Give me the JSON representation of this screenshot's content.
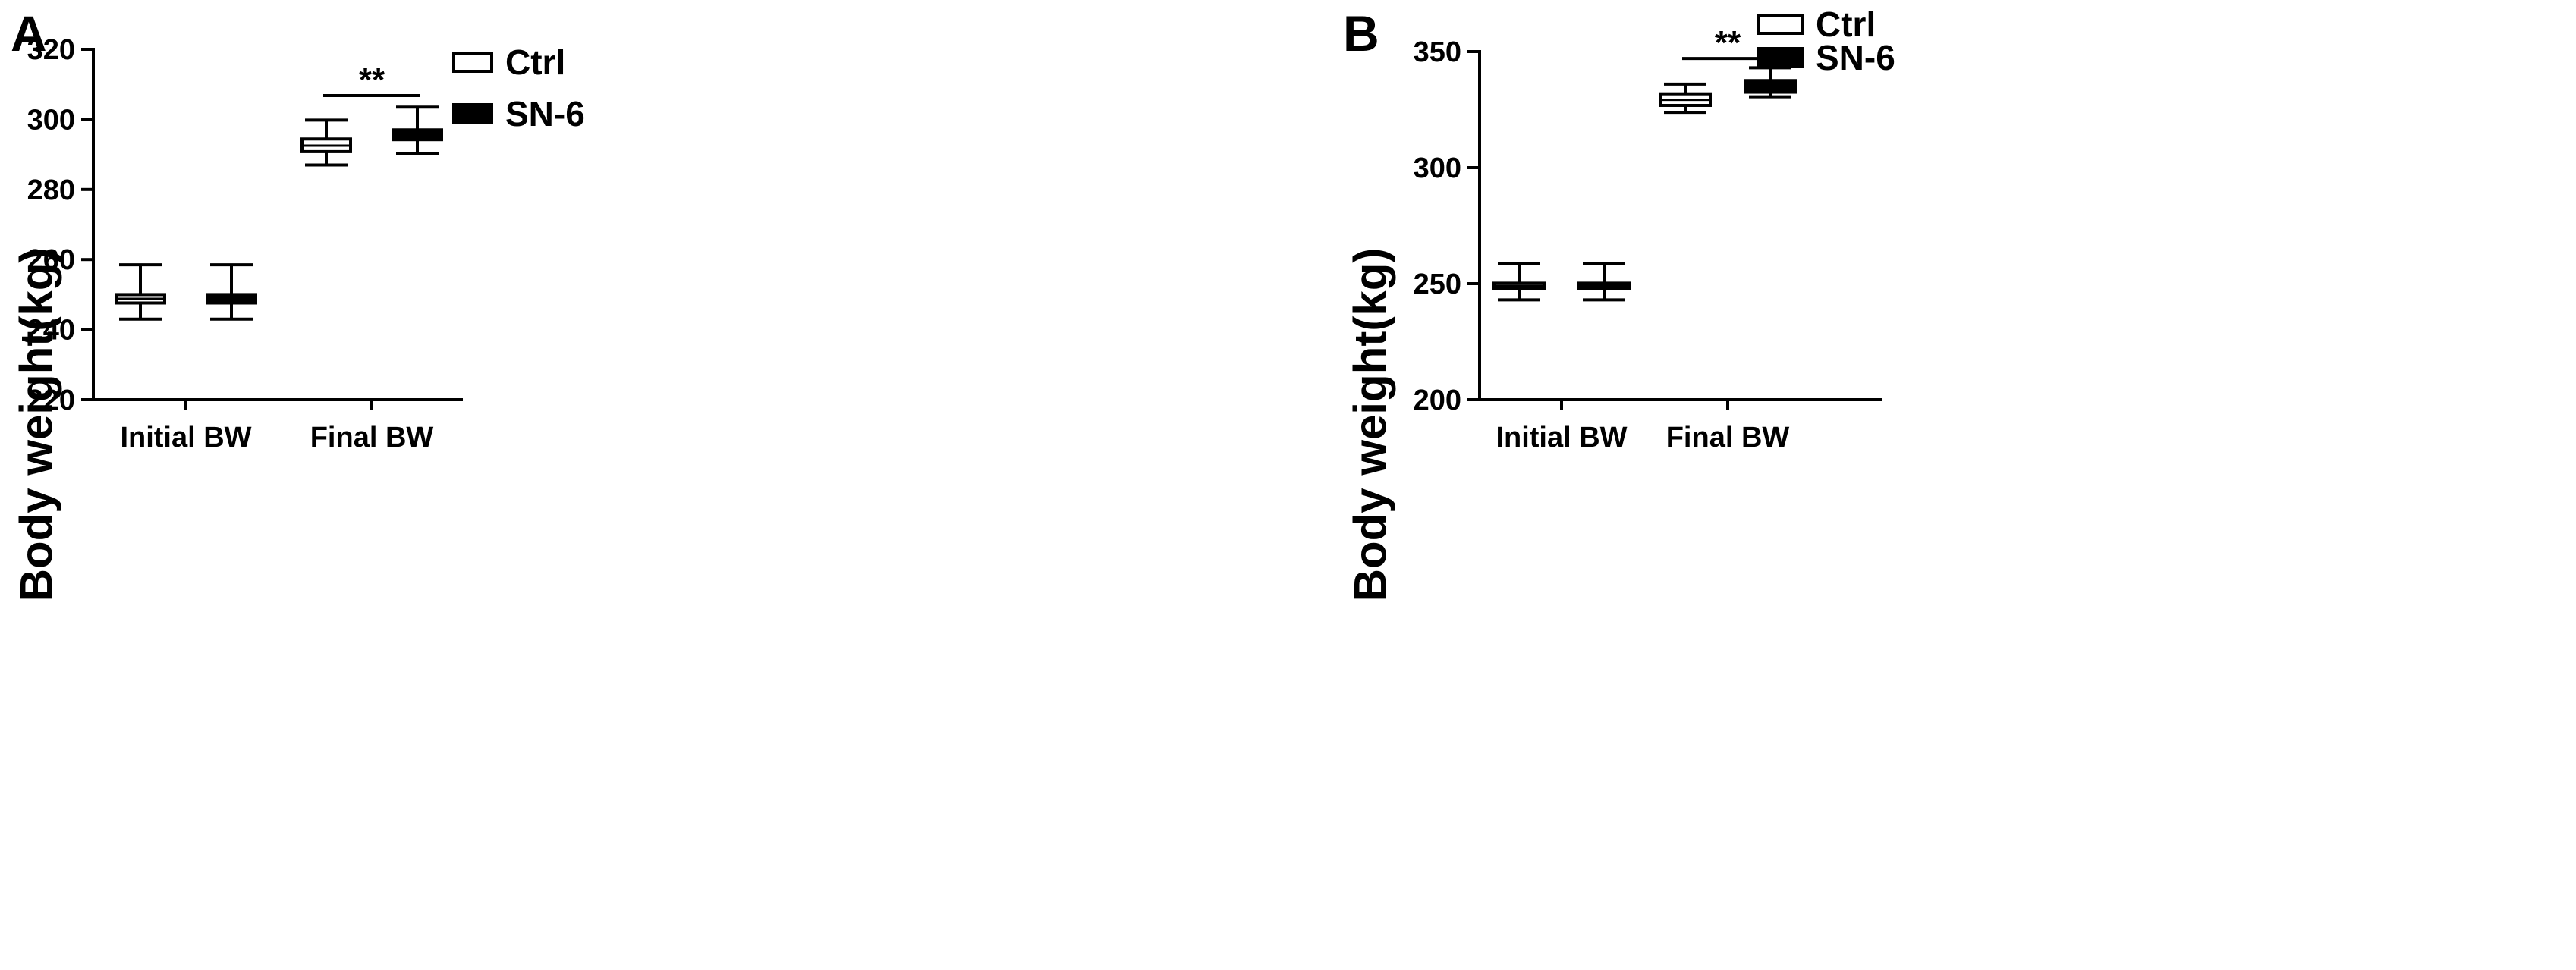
{
  "chart_data": [
    {
      "panel": "A",
      "type": "boxplot",
      "ylabel": "Body weight(kg)",
      "ylim": [
        220,
        320
      ],
      "yticks": [
        220,
        240,
        260,
        280,
        300,
        320
      ],
      "categories": [
        "Initial BW",
        "Final BW"
      ],
      "legend": {
        "position": "top-right",
        "entries": [
          "Ctrl",
          "SN-6"
        ]
      },
      "series": [
        {
          "name": "Ctrl",
          "fill": "#ffffff",
          "boxes": [
            {
              "min": 243,
              "q1": 247.6,
              "median": 248.8,
              "q3": 250,
              "max": 258.5
            },
            {
              "min": 287,
              "q1": 290.8,
              "median": 292.5,
              "q3": 294.4,
              "max": 299.8
            }
          ]
        },
        {
          "name": "SN-6",
          "fill": "#000000",
          "boxes": [
            {
              "min": 243,
              "q1": 247.6,
              "median": 248.8,
              "q3": 250,
              "max": 258.5
            },
            {
              "min": 290.2,
              "q1": 294.2,
              "median": 295.5,
              "q3": 297,
              "max": 303.5
            }
          ]
        }
      ],
      "annotations": [
        {
          "text": "**",
          "category": "Final BW",
          "y": 306.8
        }
      ]
    },
    {
      "panel": "B",
      "type": "boxplot",
      "ylabel": "Body weight(kg)",
      "ylim": [
        200,
        350
      ],
      "yticks": [
        200,
        250,
        300,
        350
      ],
      "categories": [
        "Initial BW",
        "Final BW"
      ],
      "legend": {
        "position": "top-right",
        "entries": [
          "Ctrl",
          "SN-6"
        ]
      },
      "series": [
        {
          "name": "Ctrl",
          "fill": "#ffffff",
          "boxes": [
            {
              "min": 243,
              "q1": 248,
              "median": 249,
              "q3": 250.2,
              "max": 258.5
            },
            {
              "min": 323.8,
              "q1": 326.8,
              "median": 329.2,
              "q3": 331.8,
              "max": 336
            }
          ]
        },
        {
          "name": "SN-6",
          "fill": "#000000",
          "boxes": [
            {
              "min": 243,
              "q1": 248,
              "median": 249,
              "q3": 250.2,
              "max": 258.5
            },
            {
              "min": 330.5,
              "q1": 332.5,
              "median": 335,
              "q3": 337.5,
              "max": 343
            }
          ]
        }
      ],
      "annotations": [
        {
          "text": "**",
          "category": "Final BW",
          "y": 347
        }
      ]
    }
  ]
}
